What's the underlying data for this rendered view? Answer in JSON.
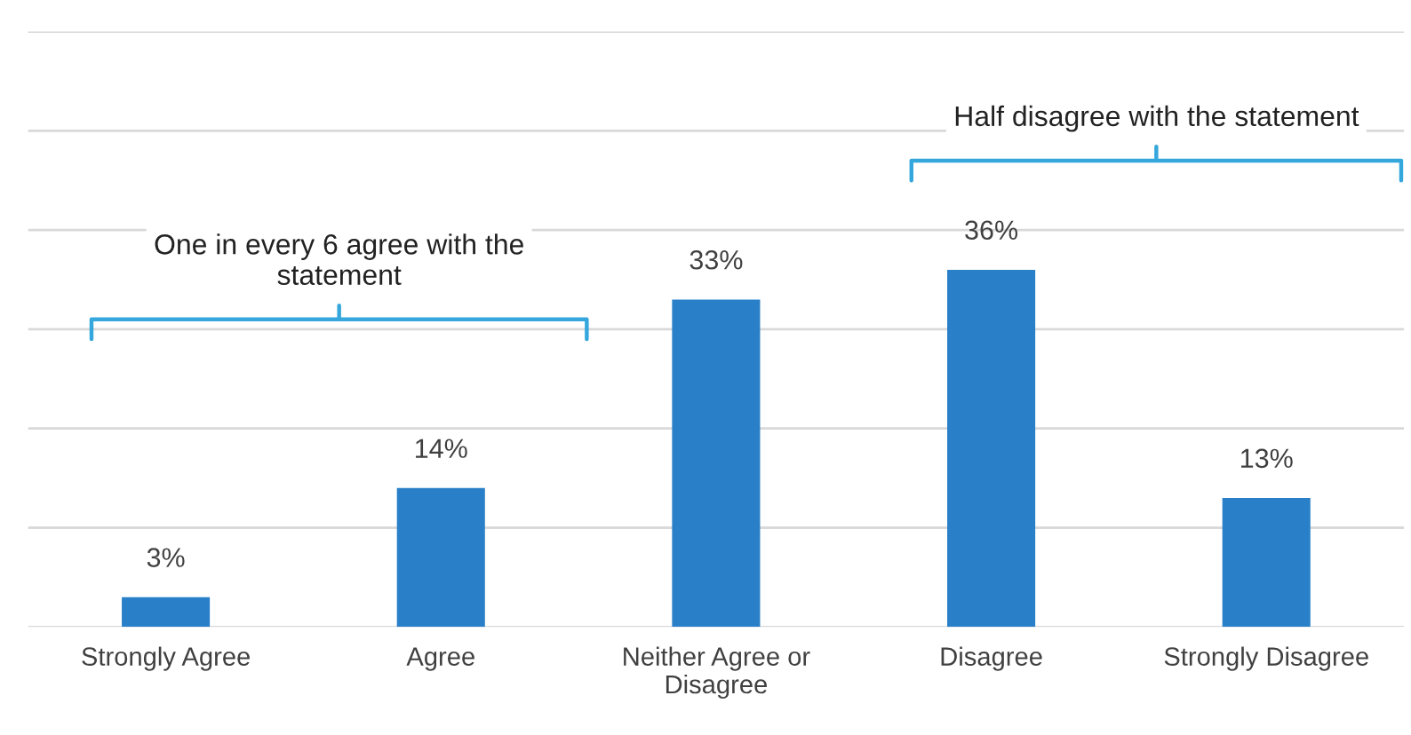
{
  "chart_data": {
    "type": "bar",
    "categories": [
      "Strongly Agree",
      "Agree",
      "Neither Agree or Disagree",
      "Disagree",
      "Strongly Disagree"
    ],
    "values": [
      3,
      14,
      33,
      36,
      13
    ],
    "value_labels": [
      "3%",
      "14%",
      "33%",
      "36%",
      "13%"
    ],
    "color": "#2a80c8",
    "ylim": [
      0,
      60
    ],
    "yticks": [
      {
        "value": 0,
        "label": null
      },
      {
        "value": 10,
        "label": null
      },
      {
        "value": 20,
        "label": null
      },
      {
        "value": 30,
        "label": null
      },
      {
        "value": 40,
        "label": null
      },
      {
        "value": 50,
        "label": null
      },
      {
        "value": 60,
        "label": null
      }
    ],
    "tick_labels": "x",
    "grid": "y",
    "legend": false,
    "annotations": [
      "One in every 6 agree with the statement",
      "Half disagree with the statement"
    ]
  }
}
